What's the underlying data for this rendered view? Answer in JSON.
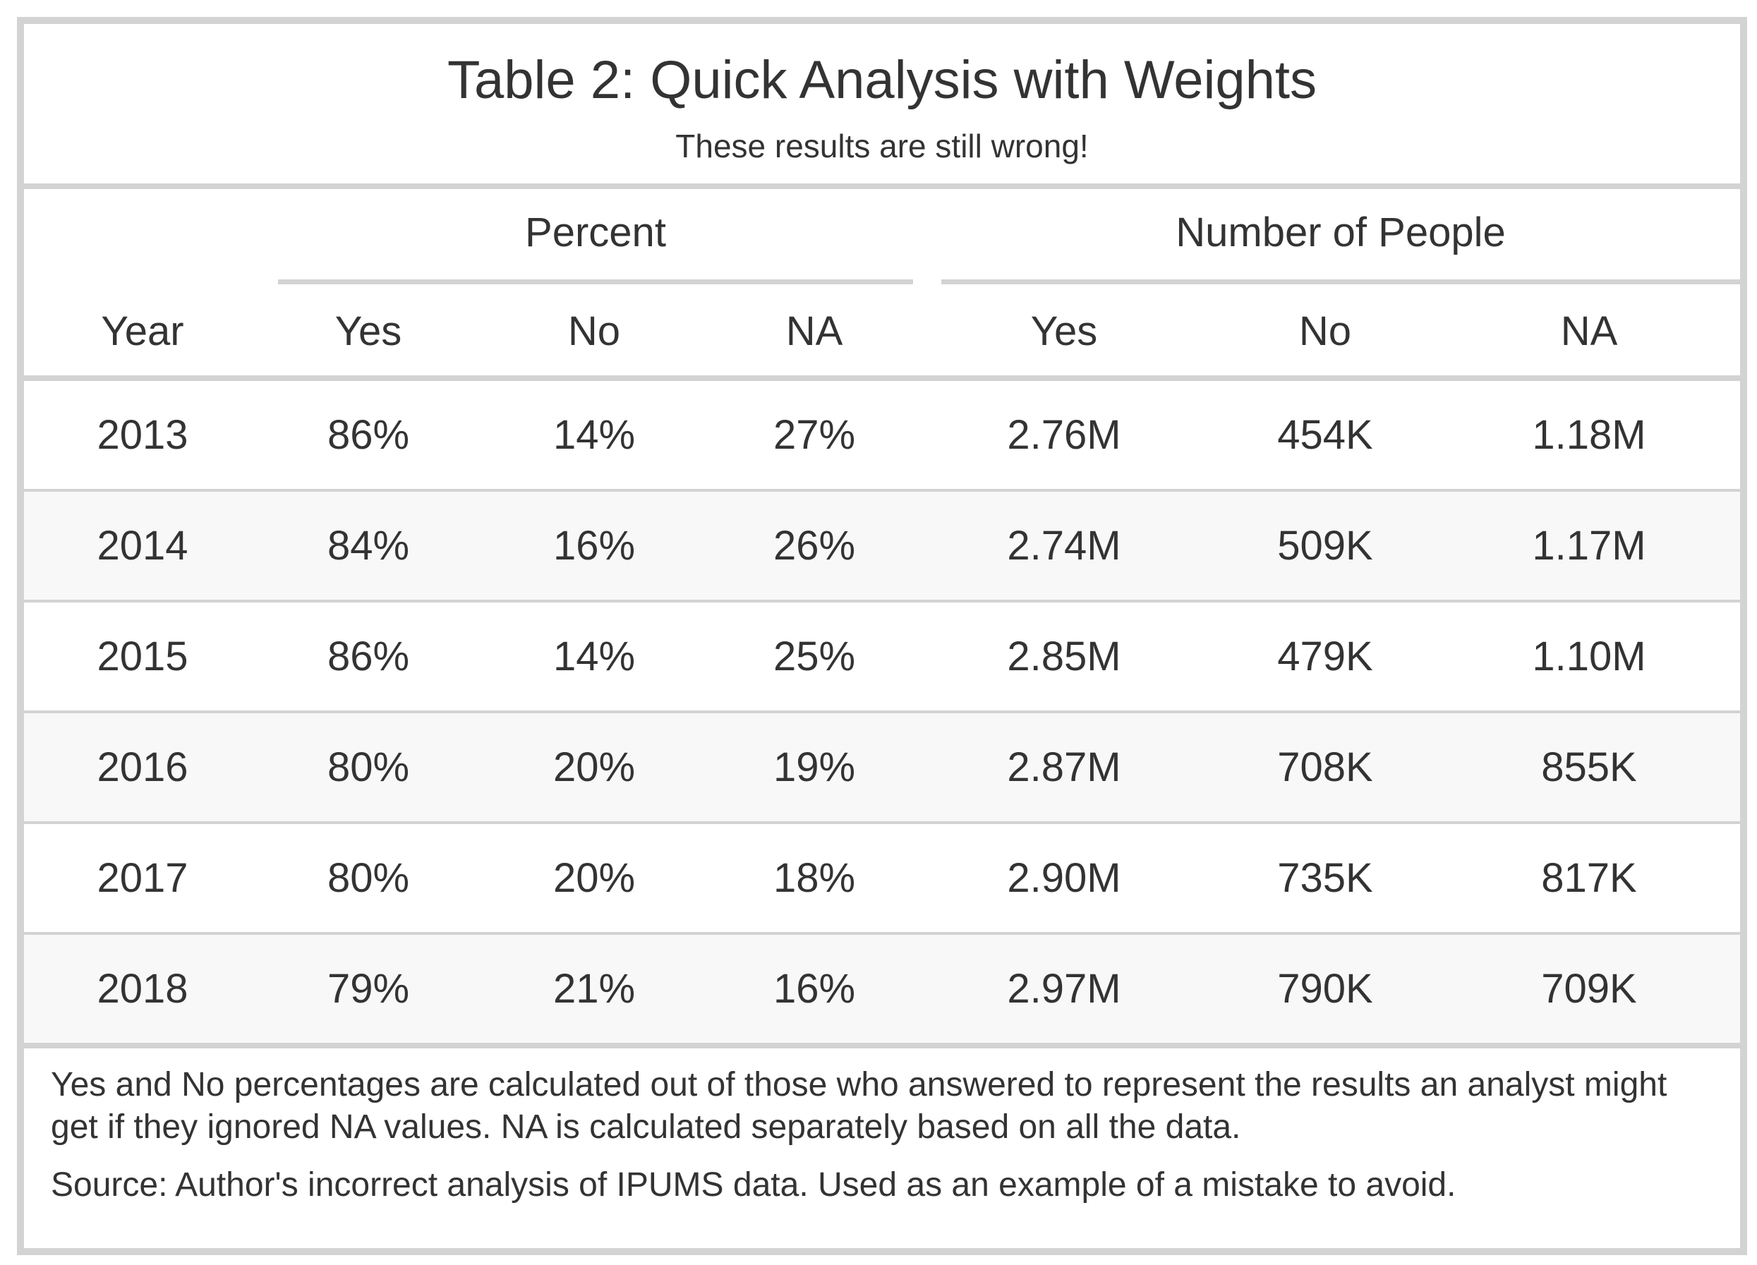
{
  "chart_data": {
    "type": "table",
    "title": "Table 2: Quick Analysis with Weights",
    "subtitle": "These results are still wrong!",
    "spanners": [
      {
        "label": "Percent",
        "columns": [
          "Yes",
          "No",
          "NA"
        ]
      },
      {
        "label": "Number of People",
        "columns": [
          "Yes",
          "No",
          "NA"
        ]
      }
    ],
    "columns": [
      "Year",
      "Yes",
      "No",
      "NA",
      "Yes",
      "No",
      "NA"
    ],
    "rows": [
      [
        "2013",
        "86%",
        "14%",
        "27%",
        "2.76M",
        "454K",
        "1.18M"
      ],
      [
        "2014",
        "84%",
        "16%",
        "26%",
        "2.74M",
        "509K",
        "1.17M"
      ],
      [
        "2015",
        "86%",
        "14%",
        "25%",
        "2.85M",
        "479K",
        "1.10M"
      ],
      [
        "2016",
        "80%",
        "20%",
        "19%",
        "2.87M",
        "708K",
        "855K"
      ],
      [
        "2017",
        "80%",
        "20%",
        "18%",
        "2.90M",
        "735K",
        "817K"
      ],
      [
        "2018",
        "79%",
        "21%",
        "16%",
        "2.97M",
        "790K",
        "709K"
      ]
    ],
    "footnotes": [
      "Yes and No percentages are calculated out of those who answered to represent the results an analyst might get if they ignored NA values. NA is calculated separately based on all the data.",
      "Source: Author's incorrect analysis of IPUMS data. Used as an example of a mistake to avoid."
    ]
  },
  "colors": {
    "border": "#d3d3d3",
    "stripe": "#f8f8f8",
    "text": "#333333"
  }
}
